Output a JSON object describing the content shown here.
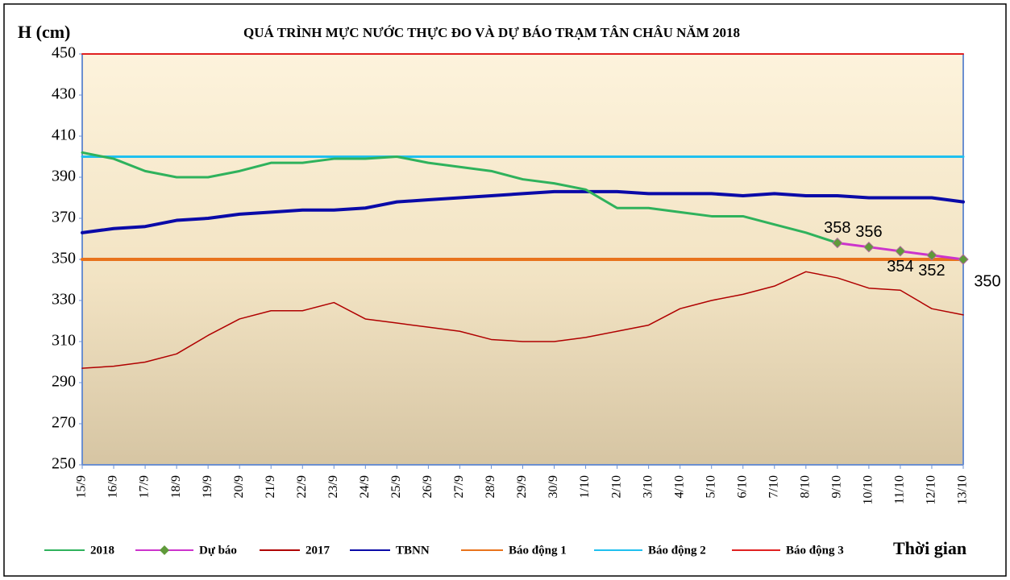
{
  "chart_data": {
    "type": "line",
    "title": "QUÁ TRÌNH MỰC NƯỚC THỰC ĐO VÀ DỰ BÁO TRẠM TÂN CHÂU NĂM 2018",
    "y_label": "H (cm)",
    "x_label": "Thời gian",
    "categories": [
      "15/9",
      "16/9",
      "17/9",
      "18/9",
      "19/9",
      "20/9",
      "21/9",
      "22/9",
      "23/9",
      "24/9",
      "25/9",
      "26/9",
      "27/9",
      "28/9",
      "29/9",
      "30/9",
      "1/10",
      "2/10",
      "3/10",
      "4/10",
      "5/10",
      "6/10",
      "7/10",
      "8/10",
      "9/10",
      "10/10",
      "11/10",
      "12/10",
      "13/10"
    ],
    "ylim": [
      250,
      450
    ],
    "yticks": [
      250,
      270,
      290,
      310,
      330,
      350,
      370,
      390,
      410,
      430,
      450
    ],
    "legend": "bottom",
    "grid": false,
    "series": [
      {
        "name": "2018",
        "color": "#2fb25c",
        "width": 3,
        "values": [
          402,
          399,
          393,
          390,
          390,
          393,
          397,
          397,
          399,
          399,
          400,
          397,
          395,
          393,
          389,
          387,
          384,
          375,
          375,
          373,
          371,
          371,
          367,
          363,
          358,
          null,
          null,
          null,
          null
        ]
      },
      {
        "name": "Dự báo",
        "color": "#cc33cc",
        "width": 3,
        "marker": "diamond",
        "marker_color": "#5f9a3a",
        "values": [
          null,
          null,
          null,
          null,
          null,
          null,
          null,
          null,
          null,
          null,
          null,
          null,
          null,
          null,
          null,
          null,
          null,
          null,
          null,
          null,
          null,
          null,
          null,
          null,
          358,
          356,
          354,
          352,
          350
        ],
        "value_labels": [
          null,
          null,
          null,
          null,
          null,
          null,
          null,
          null,
          null,
          null,
          null,
          null,
          null,
          null,
          null,
          null,
          null,
          null,
          null,
          null,
          null,
          null,
          null,
          null,
          "358",
          "356",
          "354",
          "352",
          "350"
        ]
      },
      {
        "name": "2017",
        "color": "#b00000",
        "width": 1.5,
        "values": [
          297,
          298,
          300,
          304,
          313,
          321,
          325,
          325,
          329,
          321,
          319,
          317,
          315,
          311,
          310,
          310,
          312,
          315,
          318,
          326,
          330,
          333,
          337,
          344,
          341,
          336,
          335,
          326,
          323
        ]
      },
      {
        "name": "TBNN",
        "color": "#0a0aa8",
        "width": 4,
        "values": [
          363,
          365,
          366,
          369,
          370,
          372,
          373,
          374,
          374,
          375,
          378,
          379,
          380,
          381,
          382,
          383,
          383,
          383,
          382,
          382,
          382,
          381,
          382,
          381,
          381,
          380,
          380,
          380,
          378
        ]
      },
      {
        "name": "Báo động 1",
        "color": "#e8731c",
        "width": 4,
        "values": [
          350,
          350,
          350,
          350,
          350,
          350,
          350,
          350,
          350,
          350,
          350,
          350,
          350,
          350,
          350,
          350,
          350,
          350,
          350,
          350,
          350,
          350,
          350,
          350,
          350,
          350,
          350,
          350,
          350
        ]
      },
      {
        "name": "Báo động 2",
        "color": "#1fc0ef",
        "width": 3,
        "values": [
          400,
          400,
          400,
          400,
          400,
          400,
          400,
          400,
          400,
          400,
          400,
          400,
          400,
          400,
          400,
          400,
          400,
          400,
          400,
          400,
          400,
          400,
          400,
          400,
          400,
          400,
          400,
          400,
          400
        ]
      },
      {
        "name": "Báo động 3",
        "color": "#e02020",
        "width": 2,
        "values": [
          450,
          450,
          450,
          450,
          450,
          450,
          450,
          450,
          450,
          450,
          450,
          450,
          450,
          450,
          450,
          450,
          450,
          450,
          450,
          450,
          450,
          450,
          450,
          450,
          450,
          450,
          450,
          450,
          450
        ]
      }
    ]
  }
}
